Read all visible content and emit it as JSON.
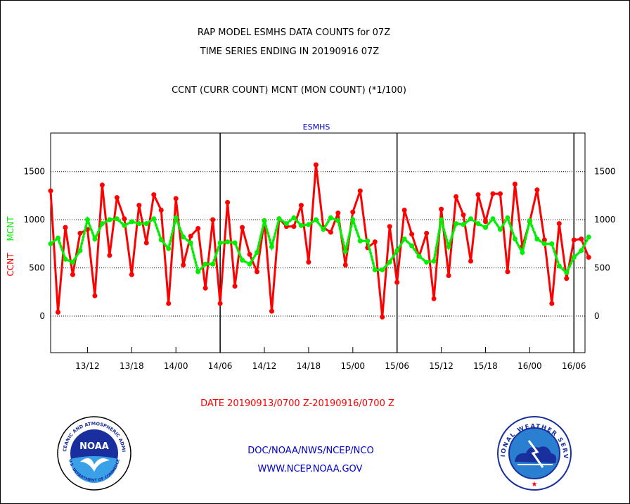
{
  "header": {
    "line1": "RAP MODEL ESMHS DATA COUNTS for 07Z",
    "line2": "TIME SERIES ENDING IN 20190916 07Z",
    "line3": "CCNT (CURR COUNT) MCNT (MON COUNT) (*1/100)"
  },
  "footer": {
    "date_range": "DATE 20190913/0700 Z-20190916/0700 Z",
    "org": "DOC/NOAA/NWS/NCEP/NCO",
    "url": "WWW.NCEP.NOAA.GOV"
  },
  "logos": {
    "noaa_text": "NOAA",
    "noaa_ring": "NATIONAL OCEANIC AND ATMOSPHERIC ADMINISTRATION",
    "noaa_ring_bottom": "U.S. DEPARTMENT OF COMMERCE",
    "nws_ring": "NATIONAL WEATHER SERVICE"
  },
  "colors": {
    "ccnt": "#ff0000",
    "mcnt": "#00ee00",
    "title": "#000000",
    "subtitle": "#0000cc",
    "date": "#ff0000"
  },
  "chart_data": {
    "type": "line",
    "title": "ESMHS",
    "ylabel_left": "CCNT",
    "ylabel_right": "MCNT",
    "ylim": [
      -380,
      1900
    ],
    "yticks": [
      0,
      500,
      1000,
      1500
    ],
    "xlim": [
      0,
      72.5
    ],
    "xticks": [
      {
        "x": 5,
        "label": "13/12"
      },
      {
        "x": 11,
        "label": "13/18"
      },
      {
        "x": 17,
        "label": "14/00"
      },
      {
        "x": 23,
        "label": "14/06"
      },
      {
        "x": 29,
        "label": "14/12"
      },
      {
        "x": 35,
        "label": "14/18"
      },
      {
        "x": 41,
        "label": "15/00"
      },
      {
        "x": 47,
        "label": "15/06"
      },
      {
        "x": 53,
        "label": "15/12"
      },
      {
        "x": 59,
        "label": "15/18"
      },
      {
        "x": 65,
        "label": "16/00"
      },
      {
        "x": 71,
        "label": "16/06"
      }
    ],
    "day_lines": [
      23,
      47,
      71
    ],
    "grid": true,
    "series": [
      {
        "name": "CCNT",
        "values": [
          1300,
          40,
          920,
          430,
          860,
          900,
          210,
          1360,
          630,
          1230,
          1010,
          430,
          1150,
          760,
          1260,
          1100,
          130,
          1220,
          530,
          830,
          910,
          290,
          1000,
          130,
          1180,
          310,
          920,
          640,
          460,
          990,
          50,
          1010,
          930,
          930,
          1150,
          560,
          1570,
          920,
          870,
          1070,
          530,
          1080,
          1300,
          710,
          770,
          -10,
          930,
          350,
          1100,
          850,
          620,
          860,
          180,
          1110,
          420,
          1240,
          1050,
          570,
          1260,
          980,
          1270,
          1270,
          460,
          1370,
          720,
          980,
          1310,
          790,
          130,
          960,
          390,
          790,
          800,
          610
        ]
      },
      {
        "name": "MCNT",
        "values": [
          750,
          810,
          590,
          560,
          680,
          1000,
          800,
          960,
          1000,
          1010,
          940,
          980,
          960,
          960,
          1010,
          790,
          700,
          1020,
          820,
          760,
          460,
          540,
          540,
          760,
          770,
          760,
          580,
          540,
          660,
          990,
          720,
          1010,
          960,
          1020,
          940,
          950,
          1000,
          900,
          1020,
          990,
          670,
          1000,
          780,
          780,
          480,
          480,
          560,
          680,
          800,
          730,
          620,
          560,
          570,
          1000,
          720,
          960,
          950,
          1010,
          960,
          920,
          1010,
          900,
          1020,
          800,
          660,
          990,
          800,
          750,
          750,
          520,
          450,
          610,
          680,
          820
        ]
      }
    ]
  }
}
